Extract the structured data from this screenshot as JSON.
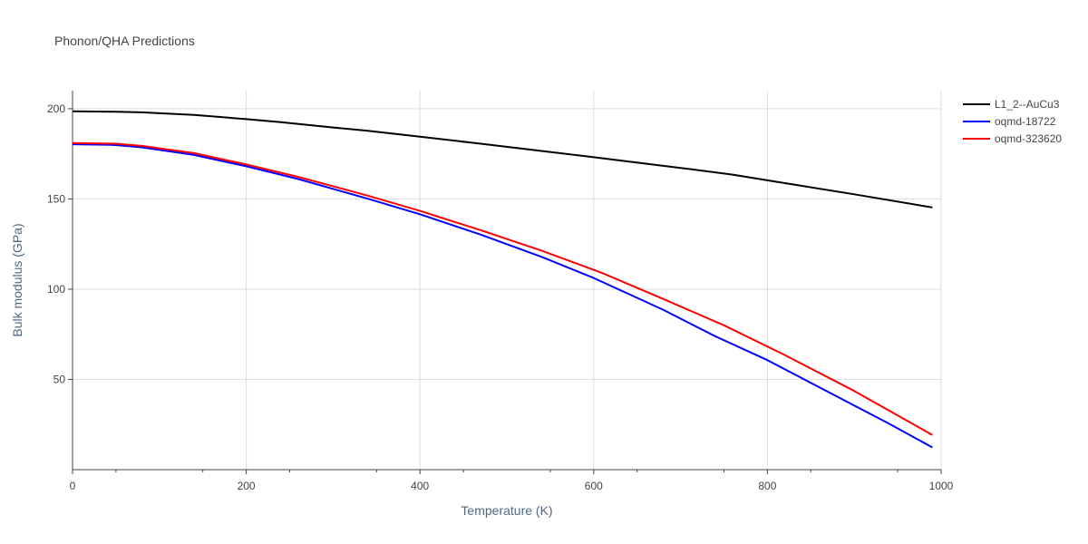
{
  "chart_data": {
    "type": "line",
    "title": "Phonon/QHA Predictions",
    "xlabel": "Temperature (K)",
    "ylabel": "Bulk modulus (GPa)",
    "xlim": [
      0,
      1000
    ],
    "ylim": [
      0,
      210
    ],
    "x_ticks": [
      0,
      200,
      400,
      600,
      800,
      1000
    ],
    "x_tick_labels": [
      "0",
      "200",
      "400",
      "600",
      "800",
      "1000"
    ],
    "y_ticks": [
      50,
      100,
      150,
      200
    ],
    "y_tick_labels": [
      "50",
      "100",
      "150",
      "200"
    ],
    "grid": true,
    "legend_position": "top-right",
    "series": [
      {
        "name": "L1_2--AuCu3",
        "color": "#000000",
        "x": [
          0,
          50,
          80,
          100,
          140,
          200,
          240,
          300,
          340,
          400,
          470,
          540,
          600,
          700,
          760,
          800,
          900,
          990
        ],
        "y": [
          198.6,
          198.3,
          198.0,
          197.5,
          196.6,
          194.2,
          192.5,
          189.6,
          187.8,
          184.5,
          180.6,
          176.6,
          173.1,
          167.2,
          163.5,
          160.3,
          152.6,
          145.3
        ]
      },
      {
        "name": "oqmd-18722",
        "color": "#0000ff",
        "x": [
          0,
          45,
          80,
          140,
          200,
          260,
          340,
          400,
          470,
          540,
          600,
          680,
          740,
          800,
          880,
          940,
          990
        ],
        "y": [
          180.3,
          180.0,
          178.6,
          174.4,
          168.1,
          161.0,
          150.1,
          141.5,
          130.2,
          117.9,
          106.2,
          88.6,
          73.9,
          60.7,
          40.6,
          25.5,
          12.3
        ]
      },
      {
        "name": "oqmd-323620",
        "color": "#ff0000",
        "x": [
          0,
          50,
          80,
          140,
          200,
          260,
          340,
          400,
          470,
          540,
          610,
          680,
          750,
          820,
          900,
          990
        ],
        "y": [
          181.0,
          180.6,
          179.4,
          175.4,
          169.1,
          162.2,
          151.8,
          143.4,
          132.7,
          121.4,
          108.9,
          94.6,
          80.0,
          63.5,
          43.6,
          19.2
        ]
      }
    ]
  }
}
